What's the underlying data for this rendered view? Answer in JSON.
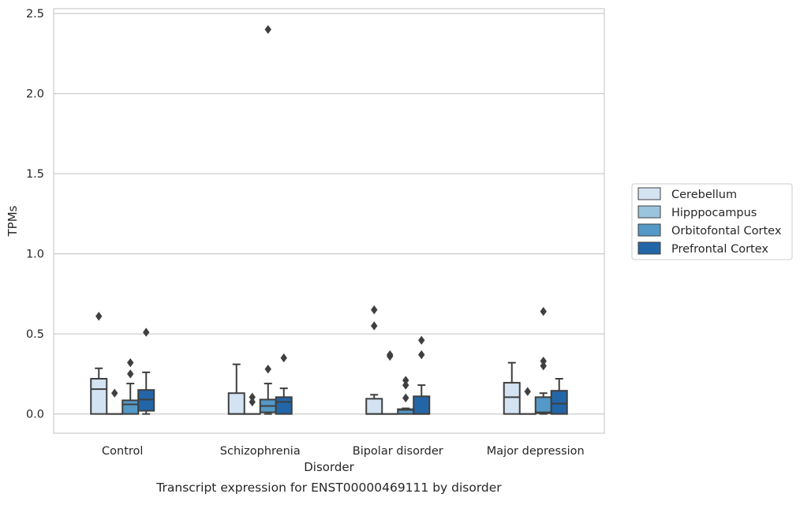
{
  "chart_data": {
    "type": "box",
    "title": "",
    "caption": "Transcript expression for ENST00000469111 by disorder",
    "xlabel": "Disorder",
    "ylabel": "TPMs",
    "ylim": [
      -0.12,
      2.53
    ],
    "yticks": [
      "0.0",
      "0.5",
      "1.0",
      "1.5",
      "2.0",
      "2.5"
    ],
    "categories": [
      "Control",
      "Schizophrenia",
      "Bipolar disorder",
      "Major depression"
    ],
    "grid": "horizontal",
    "legend_position": "right",
    "series": [
      {
        "name": "Cerebellum",
        "color": "#d4e3f2",
        "boxes": [
          {
            "whislo": 0.0,
            "q1": 0.0,
            "med": 0.155,
            "q3": 0.22,
            "whishi": 0.285,
            "fliers": [
              0.61
            ]
          },
          {
            "whislo": 0.0,
            "q1": 0.0,
            "med": 0.0,
            "q3": 0.13,
            "whishi": 0.31,
            "fliers": []
          },
          {
            "whislo": 0.0,
            "q1": 0.0,
            "med": 0.0,
            "q3": 0.095,
            "whishi": 0.12,
            "fliers": [
              0.65,
              0.55
            ]
          },
          {
            "whislo": 0.0,
            "q1": 0.0,
            "med": 0.105,
            "q3": 0.195,
            "whishi": 0.32,
            "fliers": []
          }
        ]
      },
      {
        "name": "Hipppocampus",
        "color": "#9ac4de",
        "boxes": [
          {
            "whislo": 0.0,
            "q1": 0.0,
            "med": 0.0,
            "q3": 0.0,
            "whishi": 0.0,
            "fliers": [
              0.13
            ]
          },
          {
            "whislo": 0.0,
            "q1": 0.0,
            "med": 0.0,
            "q3": 0.0,
            "whishi": 0.0,
            "fliers": [
              0.105,
              0.075
            ]
          },
          {
            "whislo": 0.0,
            "q1": 0.0,
            "med": 0.0,
            "q3": 0.0,
            "whishi": 0.0,
            "fliers": [
              0.37,
              0.36
            ]
          },
          {
            "whislo": 0.0,
            "q1": 0.0,
            "med": 0.0,
            "q3": 0.0,
            "whishi": 0.0,
            "fliers": [
              0.14
            ]
          }
        ]
      },
      {
        "name": "Orbitofontal Cortex",
        "color": "#5499c7",
        "boxes": [
          {
            "whislo": 0.0,
            "q1": 0.0,
            "med": 0.06,
            "q3": 0.085,
            "whishi": 0.19,
            "fliers": [
              0.32,
              0.25
            ]
          },
          {
            "whislo": 0.0,
            "q1": 0.01,
            "med": 0.05,
            "q3": 0.09,
            "whishi": 0.19,
            "fliers": [
              2.4,
              0.28
            ]
          },
          {
            "whislo": 0.0,
            "q1": 0.0,
            "med": 0.025,
            "q3": 0.03,
            "whishi": 0.035,
            "fliers": [
              0.21,
              0.18,
              0.1
            ]
          },
          {
            "whislo": 0.0,
            "q1": 0.005,
            "med": 0.01,
            "q3": 0.105,
            "whishi": 0.13,
            "fliers": [
              0.64,
              0.33,
              0.3
            ]
          }
        ]
      },
      {
        "name": "Prefrontal Cortex",
        "color": "#2366a8",
        "boxes": [
          {
            "whislo": 0.0,
            "q1": 0.02,
            "med": 0.09,
            "q3": 0.15,
            "whishi": 0.26,
            "fliers": [
              0.51
            ]
          },
          {
            "whislo": 0.0,
            "q1": 0.0,
            "med": 0.075,
            "q3": 0.105,
            "whishi": 0.16,
            "fliers": [
              0.35
            ]
          },
          {
            "whislo": 0.0,
            "q1": 0.0,
            "med": 0.0,
            "q3": 0.11,
            "whishi": 0.18,
            "fliers": [
              0.46,
              0.37
            ]
          },
          {
            "whislo": 0.0,
            "q1": 0.0,
            "med": 0.065,
            "q3": 0.145,
            "whishi": 0.22,
            "fliers": []
          }
        ]
      }
    ]
  }
}
